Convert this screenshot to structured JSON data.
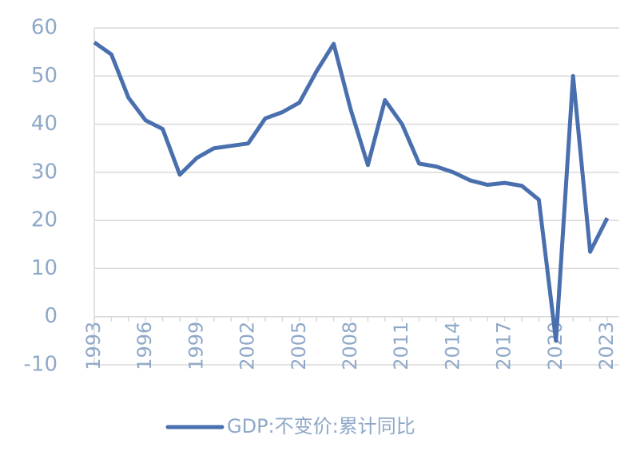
{
  "chart_data": {
    "type": "line",
    "categories": [
      "1993",
      null,
      null,
      "1996",
      null,
      null,
      "1999",
      null,
      null,
      "2002",
      null,
      null,
      "2005",
      null,
      null,
      "2008",
      null,
      null,
      "2011",
      null,
      null,
      "2014",
      null,
      null,
      "2017",
      null,
      null,
      "2020",
      null,
      null,
      "2023"
    ],
    "series": [
      {
        "name": "GDP:不变价:累计同比",
        "color": "#4a6fae",
        "values": [
          57,
          54.5,
          45.5,
          40.8,
          39,
          29.5,
          33,
          35,
          35.5,
          36,
          41.2,
          42.5,
          44.5,
          51,
          56.7,
          43,
          31.5,
          45,
          40,
          31.8,
          31.2,
          30,
          28.3,
          27.4,
          27.8,
          27.2,
          24.3,
          -5,
          50,
          13.5,
          20.5
        ]
      }
    ],
    "ylim": [
      -10,
      60
    ],
    "yticks": [
      -10,
      0,
      10,
      20,
      30,
      40,
      50,
      60
    ],
    "grid": true,
    "legend": "bottom"
  }
}
